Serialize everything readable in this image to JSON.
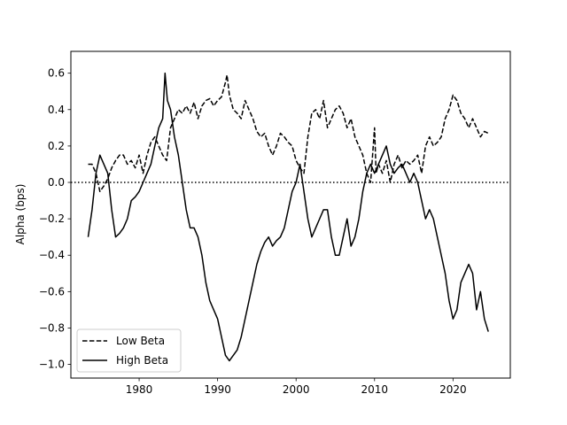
{
  "chart_data": {
    "type": "line",
    "title": "",
    "xlabel": "",
    "ylabel": "Alpha (bps)",
    "xlim": [
      1971.3,
      2027.3
    ],
    "ylim": [
      -1.075,
      0.72
    ],
    "x_ticks": [
      1980,
      1990,
      2000,
      2010,
      2020
    ],
    "y_ticks": [
      0.6,
      0.4,
      0.2,
      0.0,
      -0.2,
      -0.4,
      -0.6,
      -0.8,
      -1.0
    ],
    "x_tick_labels": [
      "1980",
      "1990",
      "2000",
      "2010",
      "2020"
    ],
    "y_tick_labels": [
      "0.6",
      "0.4",
      "0.2",
      "0.0",
      "−0.2",
      "−0.4",
      "−0.6",
      "−0.8",
      "−1.0"
    ],
    "reference_line": {
      "y": 0.0,
      "style": "dotted"
    },
    "grid": false,
    "legend": {
      "position": "lower-left"
    },
    "series": [
      {
        "name": "Low Beta",
        "style": "dashed",
        "color": "#000000",
        "points": [
          [
            1973.5,
            0.1
          ],
          [
            1974.0,
            0.1
          ],
          [
            1974.5,
            0.05
          ],
          [
            1975.0,
            -0.05
          ],
          [
            1975.5,
            -0.02
          ],
          [
            1976.0,
            0.02
          ],
          [
            1976.5,
            0.08
          ],
          [
            1977.0,
            0.12
          ],
          [
            1977.5,
            0.15
          ],
          [
            1978.0,
            0.15
          ],
          [
            1978.5,
            0.1
          ],
          [
            1979.0,
            0.12
          ],
          [
            1979.5,
            0.08
          ],
          [
            1980.0,
            0.15
          ],
          [
            1980.5,
            0.05
          ],
          [
            1981.0,
            0.15
          ],
          [
            1981.5,
            0.22
          ],
          [
            1982.0,
            0.25
          ],
          [
            1982.5,
            0.2
          ],
          [
            1983.0,
            0.15
          ],
          [
            1983.5,
            0.12
          ],
          [
            1984.0,
            0.3
          ],
          [
            1984.5,
            0.35
          ],
          [
            1985.0,
            0.4
          ],
          [
            1985.5,
            0.38
          ],
          [
            1986.0,
            0.42
          ],
          [
            1986.5,
            0.38
          ],
          [
            1987.0,
            0.44
          ],
          [
            1987.5,
            0.35
          ],
          [
            1988.0,
            0.42
          ],
          [
            1988.5,
            0.45
          ],
          [
            1989.0,
            0.46
          ],
          [
            1989.5,
            0.42
          ],
          [
            1990.0,
            0.45
          ],
          [
            1990.5,
            0.47
          ],
          [
            1991.0,
            0.55
          ],
          [
            1991.2,
            0.59
          ],
          [
            1991.5,
            0.48
          ],
          [
            1992.0,
            0.4
          ],
          [
            1992.5,
            0.38
          ],
          [
            1993.0,
            0.35
          ],
          [
            1993.5,
            0.45
          ],
          [
            1994.0,
            0.4
          ],
          [
            1994.5,
            0.35
          ],
          [
            1995.0,
            0.28
          ],
          [
            1995.5,
            0.25
          ],
          [
            1996.0,
            0.27
          ],
          [
            1996.5,
            0.2
          ],
          [
            1997.0,
            0.15
          ],
          [
            1997.5,
            0.2
          ],
          [
            1998.0,
            0.27
          ],
          [
            1998.5,
            0.25
          ],
          [
            1999.0,
            0.22
          ],
          [
            1999.5,
            0.2
          ],
          [
            2000.0,
            0.12
          ],
          [
            2000.5,
            0.08
          ],
          [
            2001.0,
            0.05
          ],
          [
            2001.5,
            0.25
          ],
          [
            2002.0,
            0.38
          ],
          [
            2002.5,
            0.4
          ],
          [
            2003.0,
            0.35
          ],
          [
            2003.5,
            0.45
          ],
          [
            2004.0,
            0.3
          ],
          [
            2004.5,
            0.35
          ],
          [
            2005.0,
            0.4
          ],
          [
            2005.5,
            0.42
          ],
          [
            2006.0,
            0.38
          ],
          [
            2006.5,
            0.3
          ],
          [
            2007.0,
            0.35
          ],
          [
            2007.5,
            0.25
          ],
          [
            2008.0,
            0.2
          ],
          [
            2008.5,
            0.15
          ],
          [
            2009.0,
            0.05
          ],
          [
            2009.5,
            0.0
          ],
          [
            2010.0,
            0.3
          ],
          [
            2010.2,
            0.05
          ],
          [
            2010.5,
            0.1
          ],
          [
            2011.0,
            0.05
          ],
          [
            2011.5,
            0.12
          ],
          [
            2012.0,
            0.0
          ],
          [
            2012.5,
            0.1
          ],
          [
            2013.0,
            0.15
          ],
          [
            2013.5,
            0.08
          ],
          [
            2014.0,
            0.12
          ],
          [
            2014.5,
            0.1
          ],
          [
            2015.0,
            0.12
          ],
          [
            2015.5,
            0.15
          ],
          [
            2016.0,
            0.05
          ],
          [
            2016.5,
            0.2
          ],
          [
            2017.0,
            0.25
          ],
          [
            2017.5,
            0.2
          ],
          [
            2018.0,
            0.22
          ],
          [
            2018.5,
            0.25
          ],
          [
            2019.0,
            0.35
          ],
          [
            2019.5,
            0.4
          ],
          [
            2020.0,
            0.48
          ],
          [
            2020.5,
            0.45
          ],
          [
            2021.0,
            0.38
          ],
          [
            2021.5,
            0.35
          ],
          [
            2022.0,
            0.3
          ],
          [
            2022.5,
            0.35
          ],
          [
            2023.0,
            0.3
          ],
          [
            2023.5,
            0.25
          ],
          [
            2024.0,
            0.28
          ],
          [
            2024.5,
            0.27
          ]
        ]
      },
      {
        "name": "High Beta",
        "style": "solid",
        "color": "#000000",
        "points": [
          [
            1973.5,
            -0.3
          ],
          [
            1974.0,
            -0.15
          ],
          [
            1974.5,
            0.05
          ],
          [
            1975.0,
            0.15
          ],
          [
            1975.5,
            0.1
          ],
          [
            1976.0,
            0.05
          ],
          [
            1976.5,
            -0.15
          ],
          [
            1977.0,
            -0.3
          ],
          [
            1977.5,
            -0.28
          ],
          [
            1978.0,
            -0.25
          ],
          [
            1978.5,
            -0.2
          ],
          [
            1979.0,
            -0.1
          ],
          [
            1979.5,
            -0.08
          ],
          [
            1980.0,
            -0.05
          ],
          [
            1980.5,
            0.0
          ],
          [
            1981.0,
            0.05
          ],
          [
            1981.5,
            0.1
          ],
          [
            1982.0,
            0.2
          ],
          [
            1982.5,
            0.3
          ],
          [
            1983.0,
            0.35
          ],
          [
            1983.3,
            0.6
          ],
          [
            1983.6,
            0.45
          ],
          [
            1984.0,
            0.4
          ],
          [
            1984.5,
            0.25
          ],
          [
            1985.0,
            0.15
          ],
          [
            1985.5,
            0.0
          ],
          [
            1986.0,
            -0.15
          ],
          [
            1986.5,
            -0.25
          ],
          [
            1987.0,
            -0.25
          ],
          [
            1987.5,
            -0.3
          ],
          [
            1988.0,
            -0.4
          ],
          [
            1988.5,
            -0.55
          ],
          [
            1989.0,
            -0.65
          ],
          [
            1989.5,
            -0.7
          ],
          [
            1990.0,
            -0.75
          ],
          [
            1990.5,
            -0.85
          ],
          [
            1991.0,
            -0.95
          ],
          [
            1991.5,
            -0.98
          ],
          [
            1992.0,
            -0.95
          ],
          [
            1992.5,
            -0.92
          ],
          [
            1993.0,
            -0.85
          ],
          [
            1993.5,
            -0.75
          ],
          [
            1994.0,
            -0.65
          ],
          [
            1994.5,
            -0.55
          ],
          [
            1995.0,
            -0.45
          ],
          [
            1995.5,
            -0.38
          ],
          [
            1996.0,
            -0.33
          ],
          [
            1996.5,
            -0.3
          ],
          [
            1997.0,
            -0.35
          ],
          [
            1997.5,
            -0.32
          ],
          [
            1998.0,
            -0.3
          ],
          [
            1998.5,
            -0.25
          ],
          [
            1999.0,
            -0.15
          ],
          [
            1999.5,
            -0.05
          ],
          [
            2000.0,
            0.0
          ],
          [
            2000.5,
            0.1
          ],
          [
            2001.0,
            -0.05
          ],
          [
            2001.5,
            -0.2
          ],
          [
            2002.0,
            -0.3
          ],
          [
            2002.5,
            -0.25
          ],
          [
            2003.0,
            -0.2
          ],
          [
            2003.5,
            -0.15
          ],
          [
            2004.0,
            -0.15
          ],
          [
            2004.5,
            -0.3
          ],
          [
            2005.0,
            -0.4
          ],
          [
            2005.5,
            -0.4
          ],
          [
            2006.0,
            -0.3
          ],
          [
            2006.5,
            -0.2
          ],
          [
            2007.0,
            -0.35
          ],
          [
            2007.5,
            -0.3
          ],
          [
            2008.0,
            -0.2
          ],
          [
            2008.5,
            -0.05
          ],
          [
            2009.0,
            0.05
          ],
          [
            2009.5,
            0.1
          ],
          [
            2010.0,
            0.05
          ],
          [
            2010.5,
            0.1
          ],
          [
            2011.0,
            0.15
          ],
          [
            2011.5,
            0.2
          ],
          [
            2012.0,
            0.1
          ],
          [
            2012.5,
            0.05
          ],
          [
            2013.0,
            0.08
          ],
          [
            2013.5,
            0.1
          ],
          [
            2014.0,
            0.05
          ],
          [
            2014.5,
            0.0
          ],
          [
            2015.0,
            0.05
          ],
          [
            2015.5,
            0.0
          ],
          [
            2016.0,
            -0.1
          ],
          [
            2016.5,
            -0.2
          ],
          [
            2017.0,
            -0.15
          ],
          [
            2017.5,
            -0.2
          ],
          [
            2018.0,
            -0.3
          ],
          [
            2018.5,
            -0.4
          ],
          [
            2019.0,
            -0.5
          ],
          [
            2019.5,
            -0.65
          ],
          [
            2020.0,
            -0.75
          ],
          [
            2020.5,
            -0.7
          ],
          [
            2021.0,
            -0.55
          ],
          [
            2021.5,
            -0.5
          ],
          [
            2022.0,
            -0.45
          ],
          [
            2022.5,
            -0.5
          ],
          [
            2023.0,
            -0.7
          ],
          [
            2023.5,
            -0.6
          ],
          [
            2024.0,
            -0.75
          ],
          [
            2024.5,
            -0.82
          ]
        ]
      }
    ]
  }
}
